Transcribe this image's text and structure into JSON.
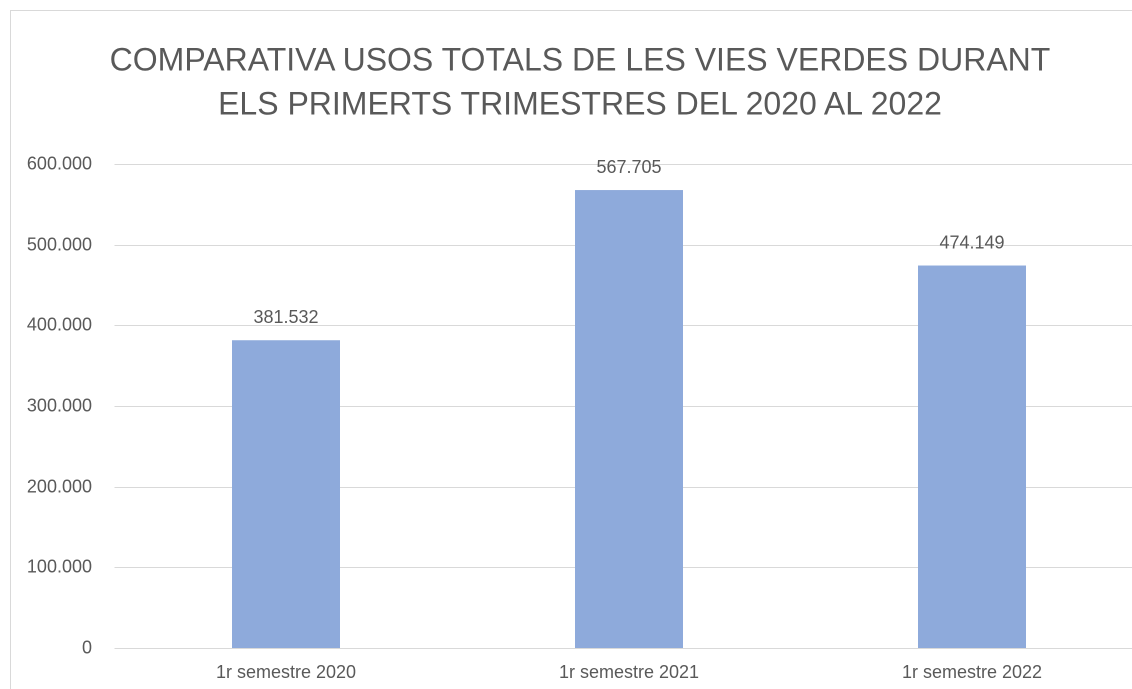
{
  "chart_data": {
    "type": "bar",
    "title": [
      "COMPARATIVA USOS TOTALS DE LES VIES VERDES DURANT",
      "ELS PRIMERTS TRIMESTRES DEL 2020 AL 2022"
    ],
    "categories": [
      "1r semestre 2020",
      "1r semestre 2021",
      "1r semestre 2022"
    ],
    "values": [
      381532,
      567705,
      474149
    ],
    "value_labels": [
      "381.532",
      "567.705",
      "474.149"
    ],
    "color": "#8eaadb",
    "ylim": [
      0,
      600000
    ],
    "yticks": [
      0,
      {
        "value": 100000,
        "label": "100.000"
      },
      {
        "value": 200000,
        "label": "200.000"
      },
      {
        "value": 300000,
        "label": "300.000"
      },
      {
        "value": 400000,
        "label": "400.000"
      },
      {
        "value": 500000,
        "label": "500.000"
      },
      {
        "value": 600000,
        "label": "600.000"
      }
    ],
    "grid": true
  }
}
